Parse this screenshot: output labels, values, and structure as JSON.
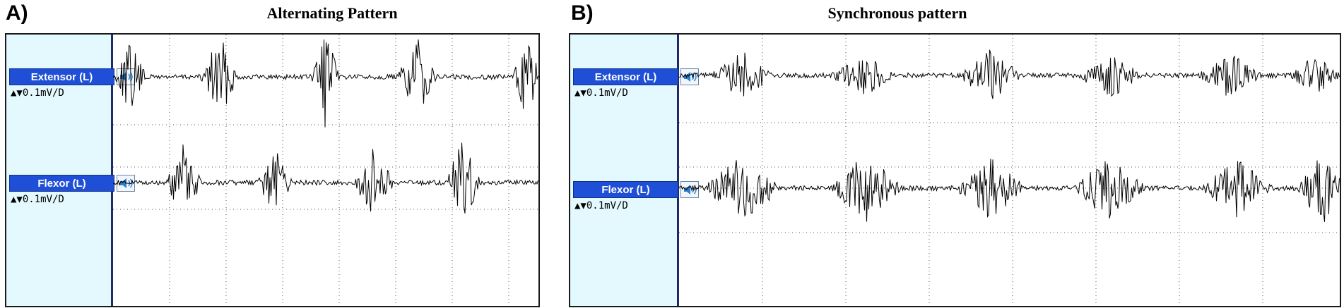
{
  "panels": [
    {
      "letter": "A)",
      "title": "Alternating Pattern",
      "channels": [
        {
          "label": "Extensor (L)",
          "scale": "▲▼0.1mV/D",
          "speaker_icon": "speaker-icon"
        },
        {
          "label": "Flexor (L)",
          "scale": "▲▼0.1mV/D",
          "speaker_icon": "speaker-icon"
        }
      ]
    },
    {
      "letter": "B)",
      "title": "Synchronous pattern",
      "channels": [
        {
          "label": "Extensor (L)",
          "scale": "▲▼0.1mV/D",
          "speaker_icon": "speaker-icon"
        },
        {
          "label": "Flexor (L)",
          "scale": "▲▼0.1mV/D",
          "speaker_icon": "speaker-icon"
        }
      ]
    }
  ],
  "colors": {
    "sidebar_bg": "#e3f9fd",
    "label_bg": "#1f4fd6",
    "trace": "#000000",
    "divider": "#1f2a6b"
  }
}
